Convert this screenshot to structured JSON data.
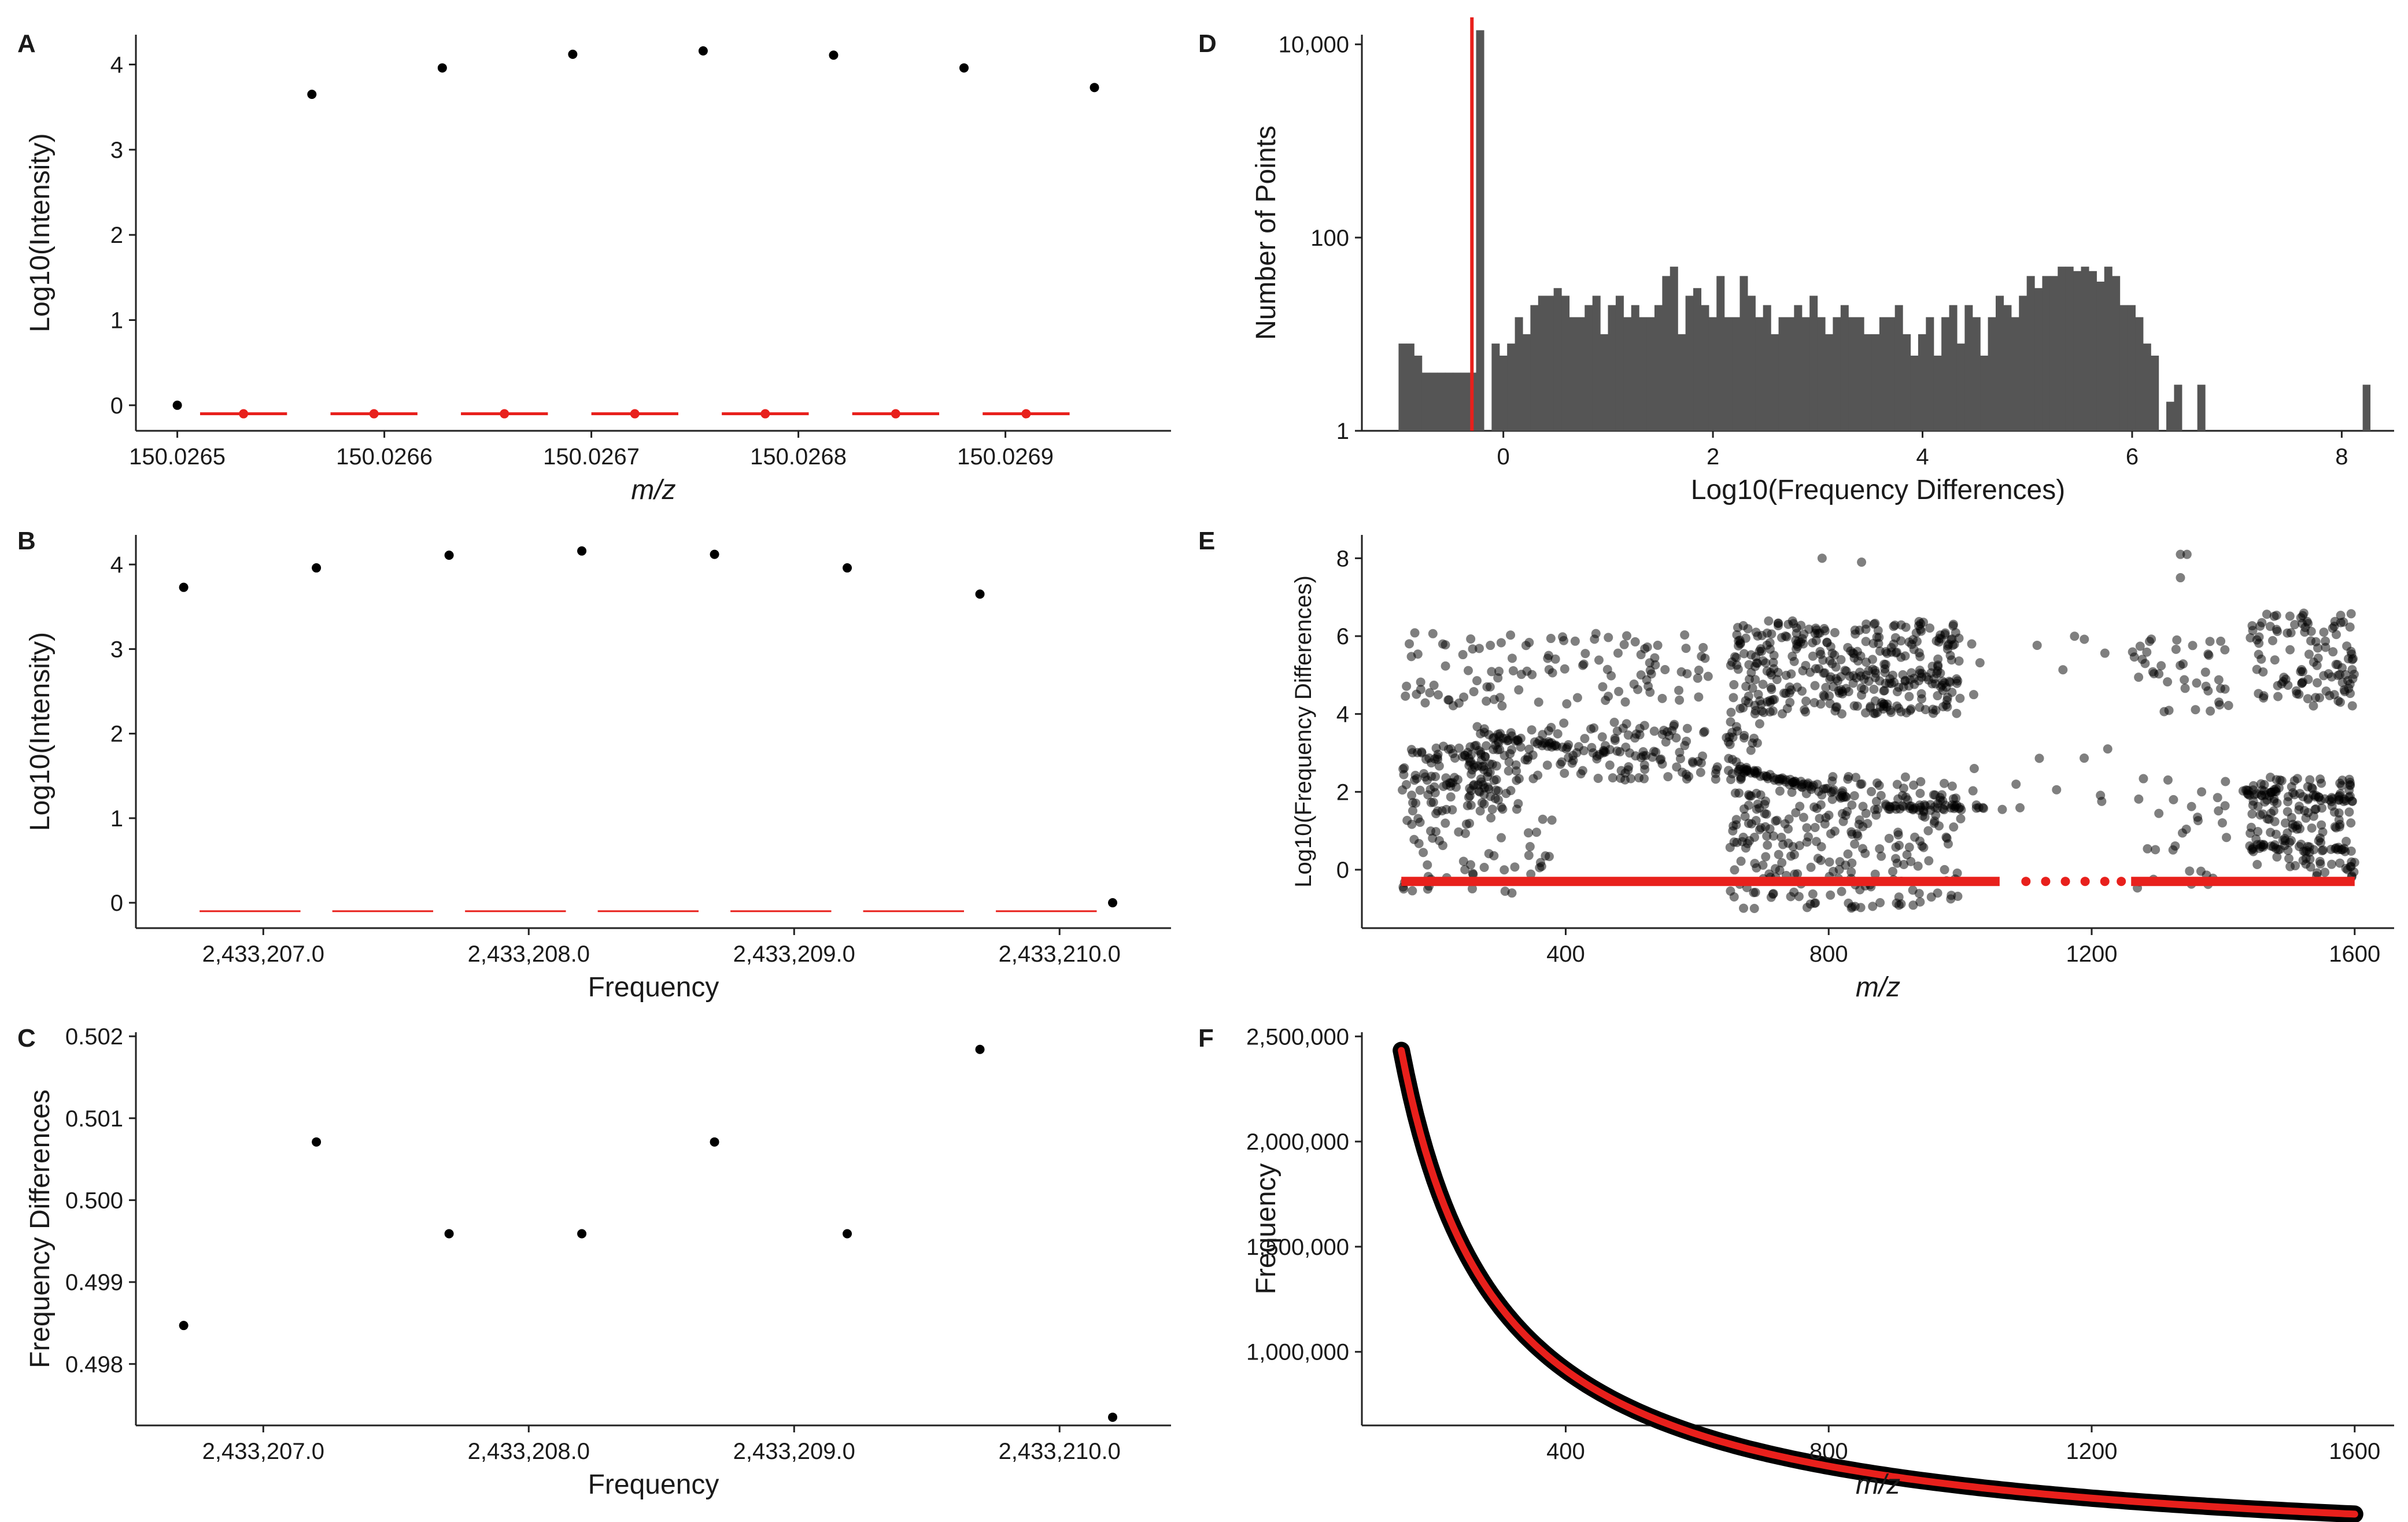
{
  "chart_data": [
    {
      "panel": "A",
      "type": "scatter",
      "xlabel": "m/z",
      "ylabel": "Log10(Intensity)",
      "xlim": [
        150.02648,
        150.02698
      ],
      "ylim": [
        -0.3,
        4.35
      ],
      "xticks": [
        150.0265,
        150.0266,
        150.0267,
        150.0268,
        150.0269
      ],
      "xtick_labels": [
        "150.0265",
        "150.0266",
        "150.0267",
        "150.0268",
        "150.0269"
      ],
      "yticks": [
        0,
        1,
        2,
        3,
        4
      ],
      "ytick_labels": [
        "0",
        "1",
        "2",
        "3",
        "4"
      ],
      "series": [
        {
          "color": "#000000",
          "marker": "point",
          "x": [
            150.0265,
            150.026565,
            150.026628,
            150.026691,
            150.026754,
            150.026817,
            150.02688,
            150.026943
          ],
          "y": [
            0.0,
            3.65,
            3.96,
            4.12,
            4.16,
            4.11,
            3.96,
            3.73
          ]
        },
        {
          "color": "#e8201c",
          "marker": "point-with-hline",
          "x": [
            150.026532,
            150.026595,
            150.026658,
            150.026721,
            150.026784,
            150.026847,
            150.02691
          ],
          "y": [
            -0.1,
            -0.1,
            -0.1,
            -0.1,
            -0.1,
            -0.1,
            -0.1
          ],
          "segment_halfwidth": 2.1e-05
        }
      ]
    },
    {
      "panel": "B",
      "type": "scatter",
      "xlabel": "Frequency",
      "ylabel": "Log10(Intensity)",
      "xlim": [
        2433206.52,
        2433210.42
      ],
      "ylim": [
        -0.3,
        4.35
      ],
      "xticks": [
        2433207.0,
        2433208.0,
        2433209.0,
        2433210.0
      ],
      "xtick_labels": [
        "2,433,207.0",
        "2,433,208.0",
        "2,433,209.0",
        "2,433,210.0"
      ],
      "yticks": [
        0,
        1,
        2,
        3,
        4
      ],
      "ytick_labels": [
        "0",
        "1",
        "2",
        "3",
        "4"
      ],
      "series": [
        {
          "color": "#000000",
          "marker": "point",
          "x": [
            2433206.7,
            2433207.2,
            2433207.7,
            2433208.2,
            2433208.7,
            2433209.2,
            2433209.7,
            2433210.2
          ],
          "y": [
            3.73,
            3.96,
            4.11,
            4.16,
            4.12,
            3.96,
            3.65,
            0.0
          ]
        },
        {
          "color": "#e8201c",
          "marker": "hline",
          "x": [
            2433206.95,
            2433207.45,
            2433207.95,
            2433208.45,
            2433208.95,
            2433209.45,
            2433209.95
          ],
          "y": [
            -0.1,
            -0.1,
            -0.1,
            -0.1,
            -0.1,
            -0.1,
            -0.1
          ],
          "segment_halfwidth": 0.19
        }
      ]
    },
    {
      "panel": "C",
      "type": "scatter",
      "xlabel": "Frequency",
      "ylabel": "Frequency Differences",
      "xlim": [
        2433206.52,
        2433210.42
      ],
      "ylim": [
        0.49725,
        0.50205
      ],
      "xticks": [
        2433207.0,
        2433208.0,
        2433209.0,
        2433210.0
      ],
      "xtick_labels": [
        "2,433,207.0",
        "2,433,208.0",
        "2,433,209.0",
        "2,433,210.0"
      ],
      "yticks": [
        0.498,
        0.499,
        0.5,
        0.501,
        0.502
      ],
      "ytick_labels": [
        "0.498",
        "0.499",
        "0.500",
        "0.501",
        "0.502"
      ],
      "series": [
        {
          "color": "#000000",
          "marker": "point",
          "x": [
            2433206.7,
            2433207.2,
            2433207.7,
            2433208.2,
            2433208.7,
            2433209.2,
            2433209.7,
            2433210.2
          ],
          "y": [
            0.49847,
            0.50071,
            0.49959,
            0.49959,
            0.50071,
            0.49959,
            0.50184,
            0.49735
          ]
        }
      ]
    },
    {
      "panel": "D",
      "type": "bar",
      "xlabel": "Log10(Frequency Differences)",
      "ylabel": "Number of Points",
      "xlim": [
        -1.35,
        8.5
      ],
      "ylim_log10": [
        0,
        4.1
      ],
      "yscale": "log",
      "xticks": [
        0,
        2,
        4,
        6,
        8
      ],
      "xtick_labels": [
        "0",
        "2",
        "4",
        "6",
        "8"
      ],
      "yticks_log10": [
        0,
        2,
        4
      ],
      "ytick_labels": [
        "1",
        "100",
        "10,000"
      ],
      "bin_start": -1.0,
      "bin_width": 0.074,
      "counts": [
        8,
        8,
        6,
        4,
        4,
        4,
        4,
        4,
        4,
        4,
        14000,
        1,
        8,
        6,
        8,
        15,
        10,
        20,
        25,
        25,
        30,
        25,
        15,
        15,
        20,
        25,
        10,
        20,
        25,
        15,
        20,
        15,
        15,
        20,
        40,
        50,
        10,
        25,
        30,
        20,
        15,
        40,
        15,
        15,
        40,
        25,
        15,
        20,
        10,
        15,
        15,
        20,
        15,
        25,
        15,
        10,
        15,
        20,
        15,
        15,
        10,
        10,
        15,
        15,
        20,
        10,
        6,
        10,
        15,
        6,
        15,
        20,
        8,
        20,
        15,
        6,
        15,
        25,
        20,
        15,
        25,
        40,
        30,
        40,
        40,
        50,
        50,
        45,
        50,
        45,
        35,
        50,
        40,
        20,
        20,
        15,
        8,
        6,
        1,
        2,
        3,
        1,
        1,
        3
      ],
      "extra_bins": [
        {
          "x": 8.2,
          "count": 3
        }
      ],
      "bar_color": "#555555",
      "marker_line": {
        "x": -0.3,
        "color": "#e8201c"
      }
    },
    {
      "panel": "E",
      "type": "scatter",
      "xlabel": "m/z",
      "ylabel": "Log10(Frequency Differences)",
      "xlim": [
        90,
        1660
      ],
      "ylim": [
        -1.5,
        8.6
      ],
      "xticks": [
        400,
        800,
        1200,
        1600
      ],
      "xtick_labels": [
        "400",
        "800",
        "1200",
        "1600"
      ],
      "yticks": [
        0,
        2,
        4,
        6,
        8
      ],
      "ytick_labels": [
        "0",
        "2",
        "4",
        "6",
        "8"
      ],
      "points_color": "#000000",
      "points_alpha": 0.5,
      "red_line": {
        "y": -0.3,
        "x_from": 150,
        "x_to": 1600,
        "gap": [
          1060,
          1260
        ],
        "color": "#e8201c"
      },
      "clusters": [
        {
          "x": [
            150,
            330
          ],
          "y": [
            1.5,
            3.2
          ],
          "n": 120
        },
        {
          "x": [
            150,
            620
          ],
          "y": [
            4.2,
            6.1
          ],
          "n": 110
        },
        {
          "x": [
            250,
            700
          ],
          "y": [
            2.3,
            3.8
          ],
          "n": 160
        },
        {
          "x": [
            150,
            380
          ],
          "y": [
            -0.6,
            1.8
          ],
          "n": 60
        },
        {
          "x": [
            650,
            1000
          ],
          "y": [
            4.0,
            6.4
          ],
          "n": 360
        },
        {
          "x": [
            650,
            1000
          ],
          "y": [
            -1.0,
            2.4
          ],
          "n": 260
        },
        {
          "x": [
            1000,
            1260
          ],
          "y": [
            1.0,
            6.0
          ],
          "n": 20
        },
        {
          "x": [
            1260,
            1410
          ],
          "y": [
            4.0,
            6.0
          ],
          "n": 40
        },
        {
          "x": [
            1260,
            1410
          ],
          "y": [
            -0.5,
            2.4
          ],
          "n": 30
        },
        {
          "x": [
            1440,
            1600
          ],
          "y": [
            4.2,
            6.6
          ],
          "n": 110
        },
        {
          "x": [
            1440,
            1600
          ],
          "y": [
            -0.2,
            2.4
          ],
          "n": 140
        }
      ],
      "bands": [
        {
          "x": [
            660,
            830
          ],
          "y_from": 2.6,
          "y_to": 1.9,
          "n": 60
        },
        {
          "x": [
            830,
            1040
          ],
          "y_from": 1.6,
          "y_to": 1.6,
          "n": 40
        },
        {
          "x": [
            1430,
            1600
          ],
          "y_from": 2.0,
          "y_to": 1.8,
          "n": 40
        },
        {
          "x": [
            1430,
            1600
          ],
          "y_from": 0.6,
          "y_to": 0.5,
          "n": 30
        },
        {
          "x": [
            260,
            560
          ],
          "y_from": 3.5,
          "y_to": 2.8,
          "n": 40
        }
      ],
      "outliers": [
        {
          "x": 790,
          "y": 8.0
        },
        {
          "x": 850,
          "y": 7.9
        },
        {
          "x": 1335,
          "y": 8.1
        },
        {
          "x": 1345,
          "y": 8.1
        },
        {
          "x": 1335,
          "y": 7.5
        }
      ]
    },
    {
      "panel": "F",
      "type": "line",
      "xlabel": "m/z",
      "ylabel": "Frequency",
      "xlim": [
        90,
        1660
      ],
      "ylim": [
        650000,
        2520000
      ],
      "xticks": [
        400,
        800,
        1200,
        1600
      ],
      "xtick_labels": [
        "400",
        "800",
        "1200",
        "1600"
      ],
      "yticks": [
        1000000,
        1500000,
        2000000,
        2500000
      ],
      "ytick_labels": [
        "1,000,000",
        "1,500,000",
        "2,000,000",
        "2,500,000"
      ],
      "curve": "Frequency = 365000000 / (m/z)",
      "x_range": [
        150,
        1600
      ],
      "series": [
        {
          "color": "#000000",
          "style": "thick-points"
        },
        {
          "color": "#e8201c",
          "style": "line"
        }
      ]
    }
  ]
}
